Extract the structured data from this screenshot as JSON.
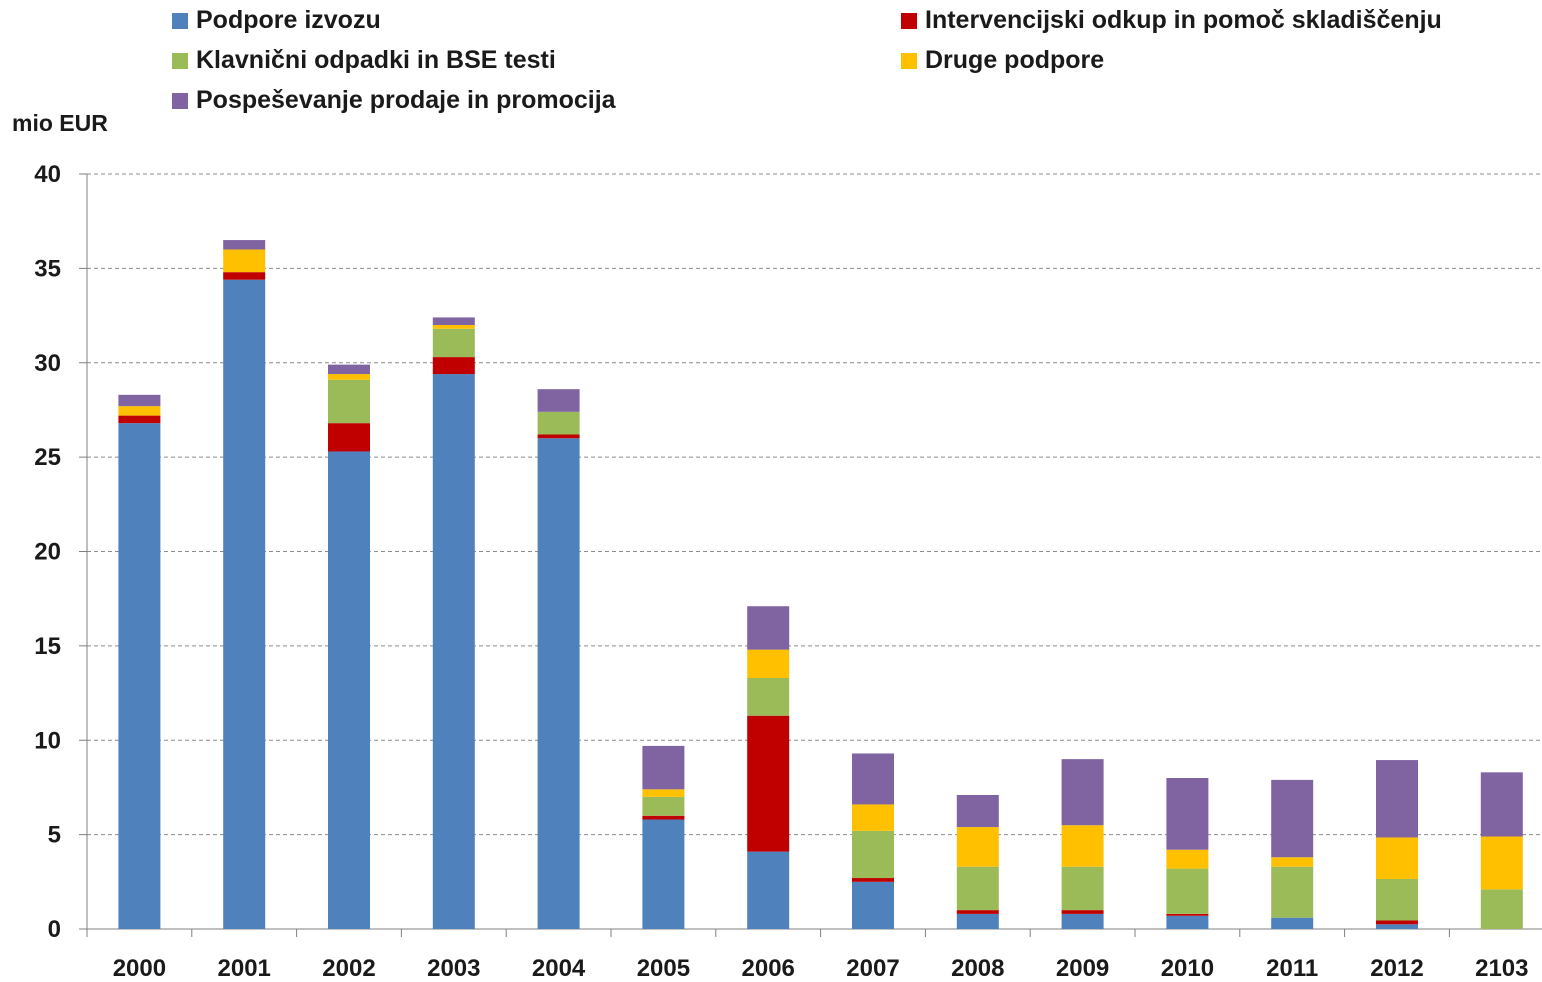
{
  "chart_data": {
    "type": "bar",
    "stacked": true,
    "ylabel": "mio EUR",
    "ylim": [
      0,
      40
    ],
    "yticks": [
      0,
      5,
      10,
      15,
      20,
      25,
      30,
      35,
      40
    ],
    "grid": true,
    "legend_position": "top",
    "categories": [
      "2000",
      "2001",
      "2002",
      "2003",
      "2004",
      "2005",
      "2006",
      "2007",
      "2008",
      "2009",
      "2010",
      "2011",
      "2012",
      "2103"
    ],
    "series": [
      {
        "name": "Podpore izvozu",
        "color": "#4F81BD",
        "values": [
          26.8,
          34.4,
          25.3,
          29.4,
          26.0,
          5.8,
          4.1,
          2.5,
          0.8,
          0.8,
          0.7,
          0.6,
          0.25,
          0.0
        ]
      },
      {
        "name": "Intervencijski odkup in pomoč skladiščenju",
        "color": "#C00000",
        "values": [
          0.4,
          0.4,
          1.5,
          0.9,
          0.2,
          0.2,
          7.2,
          0.2,
          0.2,
          0.2,
          0.1,
          0.0,
          0.2,
          0.0
        ]
      },
      {
        "name": "Klavnični odpadki in BSE testi",
        "color": "#9BBB59",
        "values": [
          0.0,
          0.0,
          2.3,
          1.5,
          1.2,
          1.0,
          2.0,
          2.5,
          2.3,
          2.3,
          2.4,
          2.7,
          2.2,
          2.1
        ]
      },
      {
        "name": "Druge podpore",
        "color": "#FFC000",
        "values": [
          0.5,
          1.2,
          0.3,
          0.2,
          0.0,
          0.4,
          1.5,
          1.4,
          2.1,
          2.2,
          1.0,
          0.5,
          2.2,
          2.8
        ]
      },
      {
        "name": "Pospeševanje prodaje in promocija",
        "color": "#8064A2",
        "values": [
          0.6,
          0.5,
          0.5,
          0.4,
          1.2,
          2.3,
          2.3,
          2.7,
          1.7,
          3.5,
          3.8,
          4.1,
          4.1,
          3.4
        ]
      }
    ]
  }
}
